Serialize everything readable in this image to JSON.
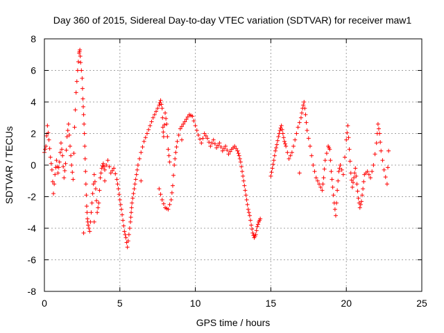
{
  "chart_data": {
    "type": "scatter",
    "title": "Day 360 of 2015, Sidereal Day-to-day VTEC variation (SDTVAR) for receiver maw1",
    "xlabel": "GPS time / hours",
    "ylabel": "SDTVAR / TECUs",
    "xlim": [
      0,
      25
    ],
    "ylim": [
      -8,
      8
    ],
    "xticks": [
      "0",
      "5",
      "10",
      "15",
      "20",
      "25"
    ],
    "yticks": [
      "-8",
      "-6",
      "-4",
      "-2",
      "0",
      "2",
      "4",
      "6",
      "8"
    ],
    "grid": true,
    "marker": "+",
    "color": "#ff0000",
    "series": [
      {
        "name": "SDTVAR",
        "points": [
          [
            0.0,
            0.8
          ],
          [
            0.1,
            1.2
          ],
          [
            0.2,
            2.5
          ],
          [
            0.3,
            1.6
          ],
          [
            0.4,
            0.5
          ],
          [
            0.5,
            -0.3
          ],
          [
            0.6,
            -1.8
          ],
          [
            0.7,
            -0.6
          ],
          [
            0.8,
            0.3
          ],
          [
            0.9,
            -0.5
          ],
          [
            1.0,
            0.2
          ],
          [
            1.1,
            1.4
          ],
          [
            1.2,
            0.6
          ],
          [
            1.3,
            -0.8
          ],
          [
            1.4,
            0.1
          ],
          [
            1.5,
            1.8
          ],
          [
            1.6,
            2.6
          ],
          [
            1.7,
            1.2
          ],
          [
            1.8,
            0.0
          ],
          [
            1.9,
            -0.9
          ],
          [
            2.0,
            2.4
          ],
          [
            2.1,
            4.6
          ],
          [
            2.2,
            6.0
          ],
          [
            2.3,
            7.1
          ],
          [
            2.35,
            7.3
          ],
          [
            2.4,
            6.5
          ],
          [
            2.5,
            5.5
          ],
          [
            2.55,
            4.2
          ],
          [
            2.6,
            3.2
          ],
          [
            2.65,
            2.0
          ],
          [
            2.7,
            0.4
          ],
          [
            2.75,
            -1.2
          ],
          [
            2.8,
            -2.6
          ],
          [
            2.85,
            -3.4
          ],
          [
            2.9,
            -3.8
          ],
          [
            3.0,
            -4.2
          ],
          [
            3.1,
            -3.0
          ],
          [
            3.2,
            -1.8
          ],
          [
            3.3,
            -0.6
          ],
          [
            3.4,
            -1.5
          ],
          [
            3.5,
            -3.0
          ],
          [
            3.6,
            -2.4
          ],
          [
            3.7,
            -0.8
          ],
          [
            3.8,
            -0.2
          ],
          [
            3.9,
            0.1
          ],
          [
            4.0,
            -0.3
          ],
          [
            4.2,
            0.3
          ],
          [
            4.4,
            -0.5
          ],
          [
            4.6,
            -0.2
          ],
          [
            4.8,
            -0.9
          ],
          [
            4.9,
            -1.5
          ],
          [
            5.0,
            -2.2
          ],
          [
            5.1,
            -2.8
          ],
          [
            5.2,
            -3.5
          ],
          [
            5.3,
            -4.2
          ],
          [
            5.4,
            -4.6
          ],
          [
            5.5,
            -5.2
          ],
          [
            5.6,
            -4.4
          ],
          [
            5.7,
            -3.6
          ],
          [
            5.75,
            -3.0
          ],
          [
            5.8,
            -2.4
          ],
          [
            5.9,
            -1.8
          ],
          [
            6.0,
            -1.2
          ],
          [
            6.1,
            -0.6
          ],
          [
            6.2,
            0.0
          ],
          [
            6.4,
            0.8
          ],
          [
            6.6,
            1.5
          ],
          [
            6.8,
            2.0
          ],
          [
            7.0,
            2.5
          ],
          [
            7.2,
            3.0
          ],
          [
            7.4,
            3.4
          ],
          [
            7.6,
            3.8
          ],
          [
            7.7,
            4.1
          ],
          [
            7.8,
            3.6
          ],
          [
            7.85,
            2.4
          ],
          [
            7.9,
            1.8
          ],
          [
            8.0,
            3.3
          ],
          [
            8.1,
            2.6
          ],
          [
            8.2,
            1.0
          ],
          [
            8.3,
            0.2
          ],
          [
            7.6,
            -1.5
          ],
          [
            7.8,
            -2.2
          ],
          [
            8.0,
            -2.7
          ],
          [
            8.2,
            -2.8
          ],
          [
            8.4,
            -2.2
          ],
          [
            8.5,
            -1.3
          ],
          [
            8.6,
            0.0
          ],
          [
            8.7,
            0.8
          ],
          [
            8.8,
            1.5
          ],
          [
            9.0,
            2.3
          ],
          [
            9.2,
            2.6
          ],
          [
            9.4,
            2.9
          ],
          [
            9.6,
            3.2
          ],
          [
            9.8,
            3.1
          ],
          [
            10.0,
            2.5
          ],
          [
            10.2,
            1.9
          ],
          [
            10.4,
            1.4
          ],
          [
            10.6,
            2.0
          ],
          [
            10.8,
            1.7
          ],
          [
            11.0,
            1.2
          ],
          [
            11.2,
            1.6
          ],
          [
            11.4,
            1.1
          ],
          [
            11.6,
            1.4
          ],
          [
            11.8,
            0.9
          ],
          [
            12.0,
            1.2
          ],
          [
            12.2,
            0.7
          ],
          [
            12.4,
            1.0
          ],
          [
            12.6,
            1.2
          ],
          [
            12.8,
            0.9
          ],
          [
            12.9,
            0.6
          ],
          [
            13.0,
            0.2
          ],
          [
            13.1,
            -0.4
          ],
          [
            13.2,
            -1.0
          ],
          [
            13.3,
            -1.6
          ],
          [
            13.4,
            -2.2
          ],
          [
            13.5,
            -2.8
          ],
          [
            13.6,
            -3.2
          ],
          [
            13.7,
            -3.8
          ],
          [
            13.8,
            -4.3
          ],
          [
            13.9,
            -4.6
          ],
          [
            14.0,
            -4.4
          ],
          [
            14.1,
            -3.9
          ],
          [
            14.2,
            -3.6
          ],
          [
            14.3,
            -3.4
          ],
          [
            15.0,
            -0.7
          ],
          [
            15.1,
            -0.2
          ],
          [
            15.2,
            0.3
          ],
          [
            15.3,
            0.9
          ],
          [
            15.4,
            1.3
          ],
          [
            15.5,
            1.8
          ],
          [
            15.6,
            2.2
          ],
          [
            15.7,
            2.5
          ],
          [
            15.8,
            2.0
          ],
          [
            15.9,
            1.5
          ],
          [
            16.0,
            1.2
          ],
          [
            16.2,
            0.4
          ],
          [
            16.4,
            0.8
          ],
          [
            16.6,
            1.6
          ],
          [
            16.8,
            2.4
          ],
          [
            17.0,
            3.0
          ],
          [
            17.1,
            3.6
          ],
          [
            17.2,
            4.0
          ],
          [
            17.3,
            3.2
          ],
          [
            17.4,
            2.2
          ],
          [
            17.6,
            1.2
          ],
          [
            17.8,
            0.0
          ],
          [
            18.0,
            -0.8
          ],
          [
            18.2,
            -1.2
          ],
          [
            18.4,
            -1.6
          ],
          [
            18.5,
            -0.8
          ],
          [
            18.6,
            0.3
          ],
          [
            18.8,
            1.2
          ],
          [
            18.9,
            1.0
          ],
          [
            19.0,
            -0.4
          ],
          [
            19.1,
            -1.4
          ],
          [
            19.2,
            -2.4
          ],
          [
            19.3,
            -3.2
          ],
          [
            19.4,
            -1.6
          ],
          [
            19.5,
            -0.4
          ],
          [
            19.6,
            0.0
          ],
          [
            19.8,
            -0.6
          ],
          [
            20.0,
            1.6
          ],
          [
            20.1,
            2.5
          ],
          [
            20.2,
            1.0
          ],
          [
            20.3,
            -0.5
          ],
          [
            20.4,
            -1.4
          ],
          [
            20.5,
            -0.8
          ],
          [
            20.6,
            -0.2
          ],
          [
            20.7,
            -1.2
          ],
          [
            20.8,
            -2.1
          ],
          [
            20.9,
            -2.7
          ],
          [
            21.0,
            -2.3
          ],
          [
            21.1,
            -1.5
          ],
          [
            21.2,
            -0.6
          ],
          [
            21.4,
            -0.4
          ],
          [
            21.6,
            -0.8
          ],
          [
            21.8,
            0.0
          ],
          [
            22.0,
            1.4
          ],
          [
            22.1,
            2.6
          ],
          [
            22.2,
            2.0
          ],
          [
            22.3,
            0.9
          ],
          [
            22.5,
            -0.3
          ],
          [
            22.7,
            -1.2
          ],
          [
            22.8,
            0.9
          ],
          [
            3.3,
            -3.6
          ],
          [
            2.6,
            -4.3
          ],
          [
            4.0,
            -1.0
          ],
          [
            6.4,
            -1.0
          ],
          [
            9.1,
            1.6
          ],
          [
            16.9,
            -0.5
          ]
        ]
      }
    ]
  }
}
